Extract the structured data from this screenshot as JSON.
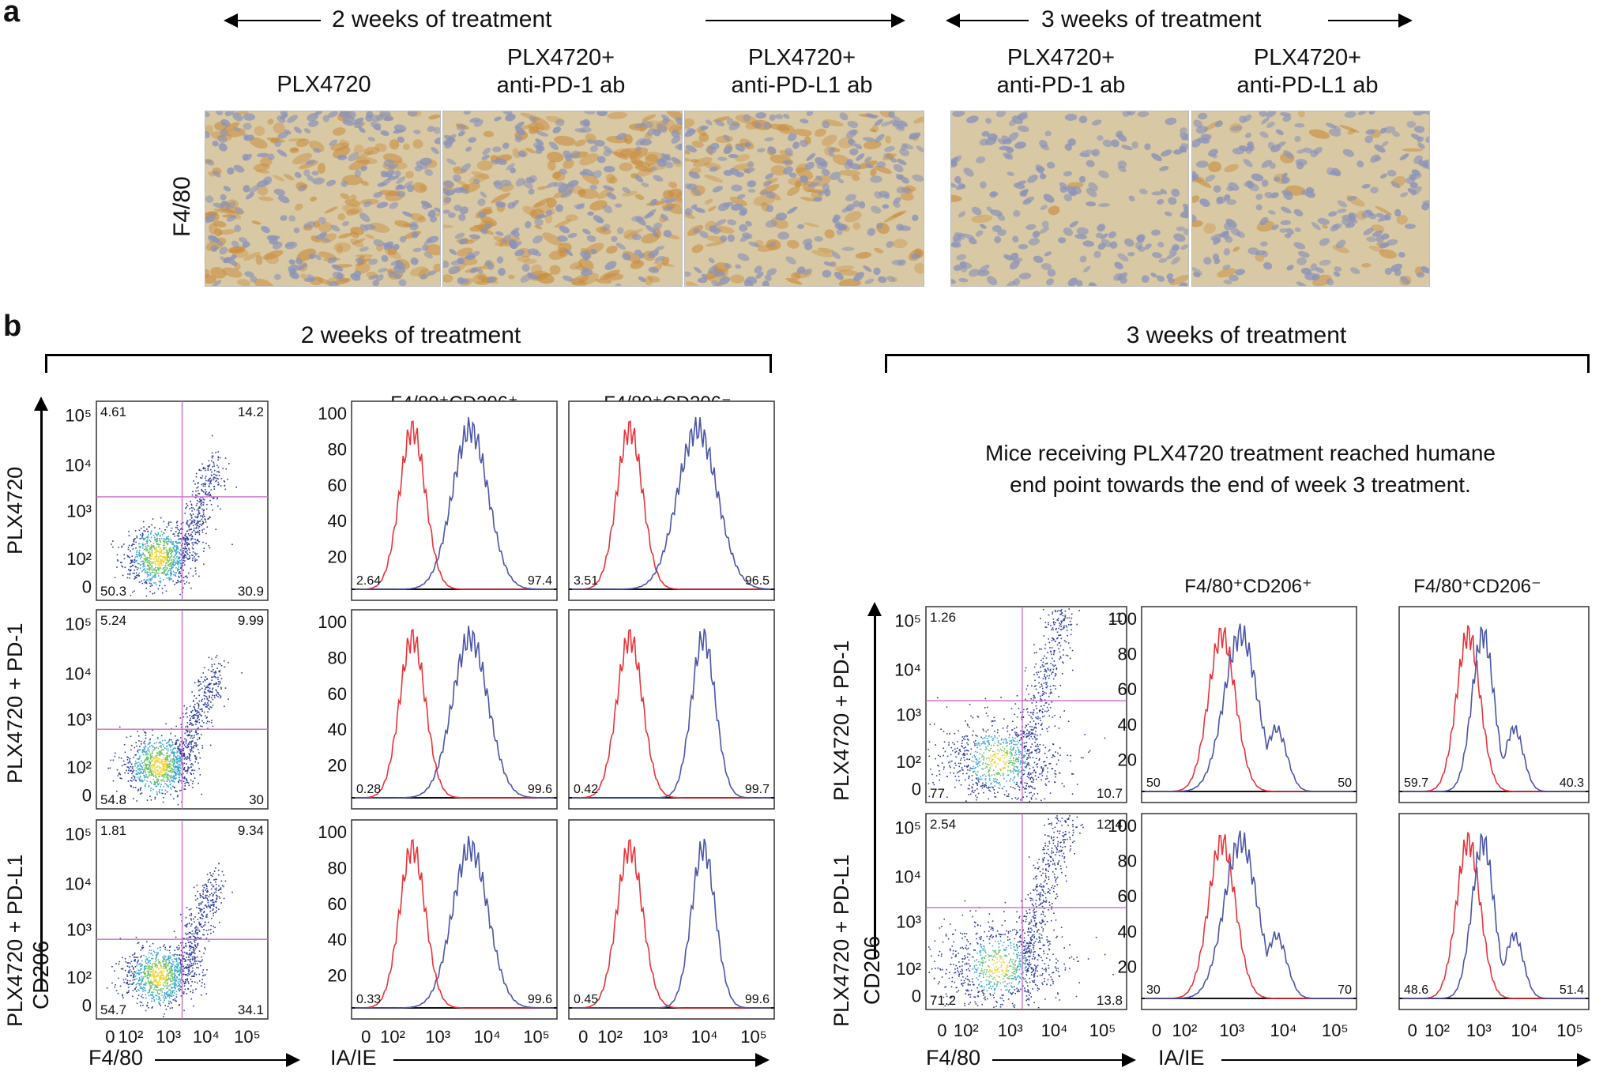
{
  "panel_a": {
    "letter": "a",
    "two_weeks_header": "2 weeks of treatment",
    "three_weeks_header": "3 weeks of treatment",
    "columns": [
      "PLX4720",
      "PLX4720+\nanti-PD-1 ab",
      "PLX4720+\nanti-PD-L1 ab",
      "PLX4720+\nanti-PD-1 ab",
      "PLX4720+\nanti-PD-L1 ab"
    ],
    "row_label": "F4/80"
  },
  "panel_b": {
    "letter": "b",
    "two_weeks_header": "2 weeks of treatment",
    "three_weeks_header": "3 weeks of treatment",
    "note": "Mice receiving PLX4720 treatment reached humane\nend point towards the end of week 3 treatment.",
    "hist_col_titles": [
      "F4/80⁺CD206⁺",
      "F4/80⁺CD206⁻"
    ],
    "scatter_y_axis": "CD206",
    "scatter_x_axis": "F4/80",
    "hist_x_axis": "IA/IE",
    "scatter_y_ticks": [
      "10⁵",
      "10⁴",
      "10³",
      "10²",
      "0"
    ],
    "scatter_x_ticks": [
      "0",
      "10²",
      "10³",
      "10⁴",
      "10⁵"
    ],
    "hist_y_ticks": [
      "100",
      "80",
      "60",
      "40",
      "20"
    ],
    "hist_x_ticks": [
      "0",
      "10²",
      "10³",
      "10⁴",
      "10⁵"
    ],
    "left_rows": [
      {
        "label": "PLX4720",
        "quad": [
          "4.61",
          "14.2",
          "50.3",
          "30.9"
        ],
        "h1": [
          "2.64",
          "97.4"
        ],
        "h2": [
          "3.51",
          "96.5"
        ]
      },
      {
        "label": "PLX4720 + PD-1",
        "quad": [
          "5.24",
          "9.99",
          "54.8",
          "30"
        ],
        "h1": [
          "0.28",
          "99.6"
        ],
        "h2": [
          "0.42",
          "99.7"
        ]
      },
      {
        "label": "PLX4720 + PD-L1",
        "quad": [
          "1.81",
          "9.34",
          "54.7",
          "34.1"
        ],
        "h1": [
          "0.33",
          "99.6"
        ],
        "h2": [
          "0.45",
          "99.6"
        ]
      }
    ],
    "right_rows": [
      {
        "label": "PLX4720 + PD-1",
        "quad": [
          "1.26",
          "11",
          "77",
          "10.7"
        ],
        "h1": [
          "50",
          "50"
        ],
        "h2": [
          "59.7",
          "40.3"
        ]
      },
      {
        "label": "PLX4720 + PD-L1",
        "quad": [
          "2.54",
          "12.4",
          "71.2",
          "13.8"
        ],
        "h1": [
          "30",
          "70"
        ],
        "h2": [
          "48.6",
          "51.4"
        ]
      }
    ]
  },
  "colors": {
    "isotype": "#e8343a",
    "stain": "#4a56a8",
    "gate": "#cc66cc",
    "tissue_bg": "#d8c9a4",
    "nuclei": "#8b93b8",
    "f480_stain": "#c98a3a"
  }
}
